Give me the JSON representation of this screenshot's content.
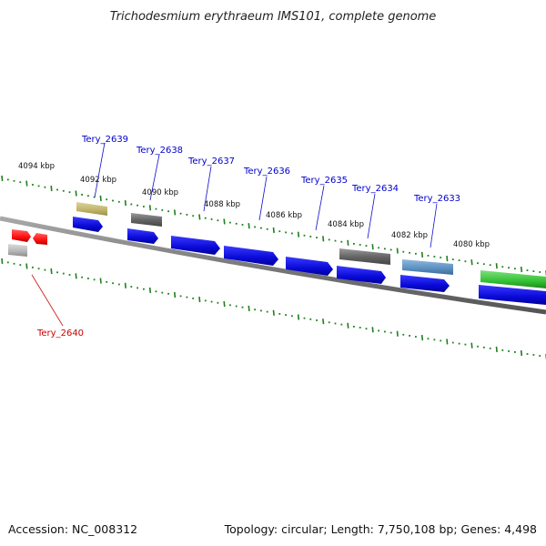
{
  "title": "Trichodesmium erythraeum IMS101, complete genome",
  "footer": {
    "accession": "Accession: NC_008312",
    "summary": "Topology: circular; Length: 7,750,108 bp; Genes: 4,498"
  },
  "colors": {
    "forward_gene": "#1010e8",
    "pseudo_gray": "#6f6f6f",
    "olive": "#c4b870",
    "light_gray": "#b8b8b8",
    "steel_blue": "#5b8fc0",
    "green": "#33c033",
    "red": "#ff1010",
    "ruler": "#1f7f1f",
    "label_blue": "#0000cc",
    "label_red": "#cc0000"
  },
  "scale_labels": [
    "4094 kbp",
    "4092 kbp",
    "4090 kbp",
    "4088 kbp",
    "4086 kbp",
    "4084 kbp",
    "4082 kbp",
    "4080 kbp"
  ],
  "gene_labels": [
    {
      "name": "Tery_2639",
      "color": "blue"
    },
    {
      "name": "Tery_2638",
      "color": "blue"
    },
    {
      "name": "Tery_2637",
      "color": "blue"
    },
    {
      "name": "Tery_2636",
      "color": "blue"
    },
    {
      "name": "Tery_2635",
      "color": "blue"
    },
    {
      "name": "Tery_2634",
      "color": "blue"
    },
    {
      "name": "Tery_2633",
      "color": "blue"
    },
    {
      "name": "Tery_2640",
      "color": "red"
    }
  ]
}
